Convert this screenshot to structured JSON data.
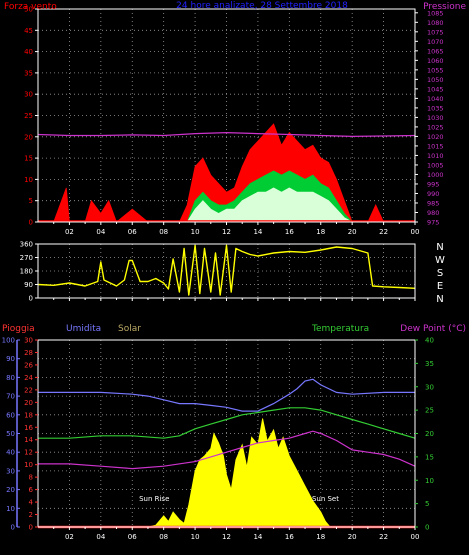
{
  "colors": {
    "background": "#000000",
    "axis": "#ffffff",
    "grid": "#9a9a9a",
    "wind": "#ff0000",
    "gust": "#00cc33",
    "wind_avg": "#d8ffd8",
    "pressure": "#cc33cc",
    "direction": "#ffff00",
    "rain": "#ff3333",
    "humidity": "#7777ff",
    "solar": "#ffff00",
    "temperature": "#33cc33",
    "dewpoint": "#cc33cc",
    "header_title": "#2222ff"
  },
  "header": {
    "left_label": "Forza vento",
    "title": "24 hore analizate, 28 Settembre 2018",
    "right_label": "Pressione"
  },
  "chart_data": [
    {
      "id": "wind-pressure",
      "type": "area",
      "title": "24 hore analizate, 28 Settembre 2018",
      "xlabel": "",
      "ylabel": "Forza vento",
      "y2label": "Pressione",
      "xlim": [
        0,
        24
      ],
      "ylim": [
        0,
        50
      ],
      "y2lim": [
        975,
        1087
      ],
      "grid": true,
      "x_ticks": [
        "02",
        "04",
        "06",
        "08",
        "10",
        "12",
        "14",
        "16",
        "18",
        "20",
        "22",
        "00"
      ],
      "y_ticks": [
        0,
        5,
        10,
        15,
        20,
        25,
        30,
        35,
        40,
        45,
        50
      ],
      "y2_ticks": [
        975,
        980,
        985,
        990,
        995,
        1000,
        1005,
        1010,
        1015,
        1020,
        1025,
        1030,
        1035,
        1040,
        1045,
        1050,
        1055,
        1060,
        1065,
        1070,
        1075,
        1080,
        1085
      ],
      "series": [
        {
          "name": "Forza vento",
          "axis": "left",
          "x": [
            0,
            1,
            1.8,
            2,
            3,
            3.4,
            4,
            4.5,
            5,
            6,
            7,
            8,
            9,
            9.5,
            10,
            10.5,
            11,
            11.5,
            12,
            12.5,
            13,
            13.5,
            14,
            14.5,
            15,
            15.5,
            16,
            16.5,
            17,
            17.5,
            18,
            18.5,
            19,
            19.5,
            20,
            20.5,
            21,
            21.5,
            22,
            23,
            24
          ],
          "values": [
            0,
            0,
            8,
            0,
            0,
            5,
            2,
            5,
            0,
            3,
            0,
            0,
            0,
            4,
            13,
            15,
            11,
            9,
            7,
            8,
            13,
            17,
            19,
            21,
            23,
            18,
            21,
            19,
            17,
            18,
            15,
            14,
            10,
            5,
            0,
            0,
            0,
            4,
            0,
            0,
            0
          ]
        },
        {
          "name": "",
          "axis": "left",
          "x": [
            9.5,
            10,
            10.5,
            11,
            11.5,
            12,
            12.5,
            13,
            13.5,
            14,
            14.5,
            15,
            15.5,
            16,
            16.5,
            17,
            17.5,
            18,
            18.5,
            19,
            19.5,
            20
          ],
          "values": [
            0,
            5,
            7,
            5,
            4,
            4,
            5,
            7,
            9,
            10,
            11,
            12,
            11,
            12,
            11,
            10,
            11,
            9,
            8,
            5,
            2,
            0
          ]
        },
        {
          "name": "",
          "axis": "left",
          "x": [
            9.5,
            10,
            10.5,
            11,
            11.5,
            12,
            12.5,
            13,
            13.5,
            14,
            14.5,
            15,
            15.5,
            16,
            16.5,
            17,
            17.5,
            18,
            18.5,
            19,
            19.5,
            20
          ],
          "values": [
            0,
            3,
            5,
            3,
            2,
            3,
            3,
            5,
            6,
            7,
            7,
            8,
            7,
            8,
            7,
            7,
            7,
            6,
            5,
            3,
            1,
            0
          ]
        },
        {
          "name": "Pressione",
          "axis": "right",
          "x": [
            0,
            2,
            4,
            6,
            8,
            10,
            12,
            14,
            16,
            18,
            20,
            22,
            24
          ],
          "values": [
            1021,
            1020.5,
            1020.5,
            1020.8,
            1020.5,
            1021.5,
            1022,
            1021.5,
            1021,
            1020.5,
            1020,
            1020.2,
            1020.5
          ]
        }
      ]
    },
    {
      "id": "wind-direction",
      "type": "line",
      "xlim": [
        0,
        24
      ],
      "ylim": [
        0,
        360
      ],
      "grid": true,
      "y_ticks": [
        0,
        90,
        180,
        270,
        360
      ],
      "x_ticks": [
        "02",
        "04",
        "06",
        "08",
        "10",
        "12",
        "14",
        "16",
        "18",
        "20",
        "22",
        "00"
      ],
      "y2_labels": [
        "N",
        "W",
        "S",
        "E",
        "N"
      ],
      "series": [
        {
          "name": "",
          "x": [
            0,
            1,
            2,
            3,
            3.8,
            4,
            4.2,
            5,
            5.5,
            5.8,
            6,
            6.5,
            7,
            7.5,
            8,
            8.3,
            8.6,
            9,
            9.3,
            9.6,
            10,
            10.3,
            10.6,
            11,
            11.3,
            11.6,
            12,
            12.3,
            12.6,
            13,
            13.5,
            14,
            15,
            16,
            17,
            18,
            19,
            20,
            21,
            21.3,
            22,
            23,
            24
          ],
          "values": [
            90,
            85,
            100,
            80,
            110,
            240,
            120,
            80,
            120,
            250,
            250,
            110,
            110,
            130,
            100,
            60,
            260,
            40,
            330,
            20,
            350,
            30,
            330,
            40,
            300,
            20,
            350,
            40,
            330,
            310,
            290,
            280,
            300,
            310,
            305,
            320,
            340,
            330,
            300,
            80,
            75,
            70,
            65
          ]
        }
      ]
    },
    {
      "id": "weather",
      "type": "line",
      "xlim": [
        0,
        24
      ],
      "ylim": [
        0,
        100
      ],
      "grid": true,
      "x_ticks": [
        "02",
        "04",
        "06",
        "08",
        "10",
        "12",
        "14",
        "16",
        "18",
        "20",
        "22",
        "00"
      ],
      "y_ticks_humidity": [
        0,
        10,
        20,
        30,
        40,
        50,
        60,
        70,
        80,
        90,
        100
      ],
      "y_ticks_rain": [
        0,
        2,
        4,
        6,
        8,
        10,
        12,
        14,
        16,
        18,
        20,
        22,
        24,
        26,
        28,
        30
      ],
      "y_ticks_temperature": [
        0,
        5,
        10,
        15,
        20,
        25,
        30,
        35,
        40
      ],
      "labels": {
        "rain": "Pioggia",
        "humidity": "Umidita",
        "solar": "Solar",
        "temperature": "Temperatura",
        "dewpoint": "Dew Point (°C)"
      },
      "annotations": [
        {
          "text": "Sun Rise",
          "x": 7.4,
          "y": 14
        },
        {
          "text": "Sun Set",
          "x": 18.3,
          "y": 14
        }
      ],
      "series": [
        {
          "name": "Umidita",
          "scale": "humidity",
          "x": [
            0,
            2,
            4,
            6,
            7,
            8,
            9,
            10,
            11,
            12,
            13,
            14,
            15,
            16,
            16.5,
            17,
            17.5,
            18,
            19,
            20,
            22,
            24
          ],
          "values": [
            72,
            72,
            72,
            71,
            70,
            68,
            66,
            66,
            65,
            64,
            62,
            62,
            66,
            71,
            74,
            78,
            79,
            76,
            72,
            71,
            72,
            72
          ]
        },
        {
          "name": "Temperatura",
          "scale": "temperature",
          "x": [
            0,
            2,
            4,
            6,
            8,
            9,
            10,
            11,
            12,
            13,
            14,
            15,
            16,
            17,
            18,
            19,
            20,
            21,
            22,
            23,
            24
          ],
          "values": [
            19,
            19,
            19.5,
            19.5,
            19,
            19.5,
            21,
            22,
            23,
            24,
            24.5,
            25,
            25.5,
            25.5,
            25,
            24,
            23,
            22,
            21,
            20,
            19
          ]
        },
        {
          "name": "Dew Point (°C)",
          "scale": "temperature",
          "x": [
            0,
            2,
            4,
            6,
            8,
            10,
            11,
            12,
            13,
            14,
            15,
            16,
            17,
            17.5,
            18,
            19,
            20,
            21,
            22,
            23,
            24
          ],
          "values": [
            13.5,
            13.5,
            13,
            12.5,
            13,
            14,
            15,
            16,
            17,
            18,
            18.5,
            19,
            20,
            20.5,
            20,
            18.5,
            16.5,
            16,
            15.5,
            14.5,
            13
          ]
        },
        {
          "name": "Solar",
          "scale": "humidity",
          "x": [
            0,
            7,
            7.5,
            8,
            8.3,
            8.6,
            9,
            9.3,
            9.6,
            10,
            10.3,
            10.6,
            11,
            11.2,
            11.5,
            11.8,
            12,
            12.3,
            12.6,
            13,
            13.3,
            13.6,
            14,
            14.3,
            14.6,
            15,
            15.3,
            15.6,
            16,
            16.5,
            17,
            17.5,
            18,
            18.3,
            18.6,
            24
          ],
          "values": [
            0,
            0,
            1,
            6,
            3,
            8,
            4,
            2,
            12,
            30,
            36,
            38,
            42,
            50,
            45,
            38,
            28,
            20,
            36,
            44,
            32,
            48,
            44,
            58,
            46,
            52,
            42,
            48,
            38,
            30,
            22,
            14,
            8,
            3,
            0,
            0
          ]
        },
        {
          "name": "Pioggia",
          "scale": "rain",
          "x": [
            0,
            24
          ],
          "values": [
            0,
            0
          ]
        }
      ]
    }
  ]
}
